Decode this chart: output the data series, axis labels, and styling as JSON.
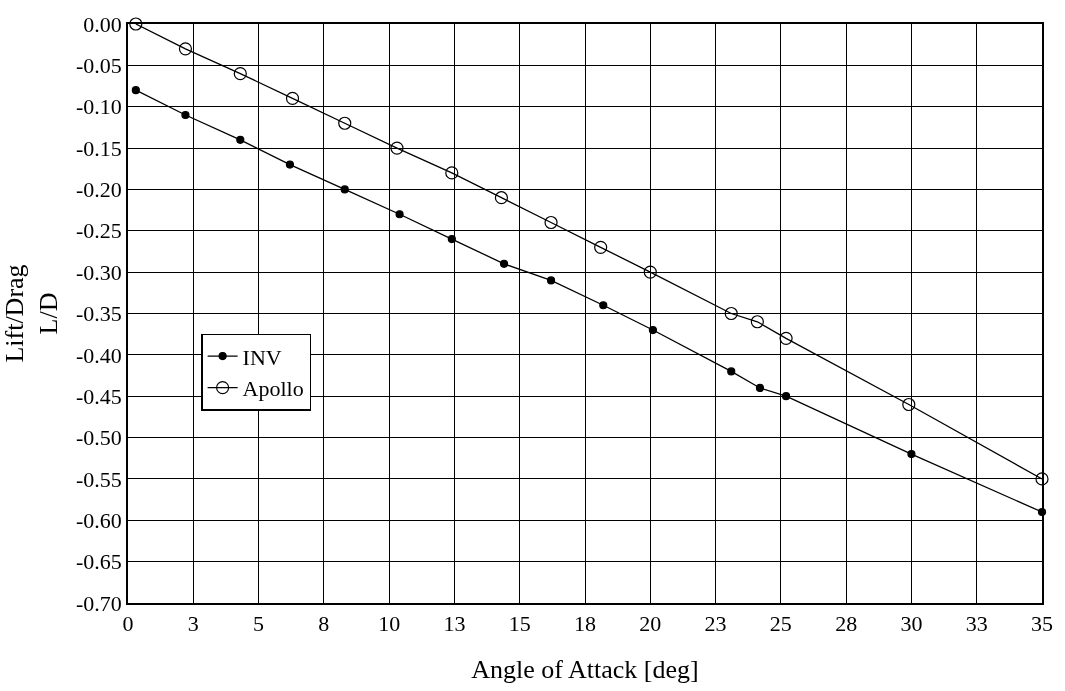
{
  "chart_data": {
    "type": "line",
    "xlabel": "Angle of Attack [deg]",
    "ylabel": "Lift/Drag\nL/D",
    "series": [
      {
        "name": "INV",
        "color": "#000000",
        "marker": "circle",
        "x": [
          0.3,
          2.2,
          4.3,
          6.2,
          8.3,
          10.4,
          12.4,
          14.4,
          16.2,
          18.2,
          20.1,
          23.1,
          24.2,
          25.2,
          30.0,
          35.0
        ],
        "values": [
          -0.08,
          -0.11,
          -0.14,
          -0.17,
          -0.2,
          -0.23,
          -0.26,
          -0.29,
          -0.31,
          -0.34,
          -0.37,
          -0.42,
          -0.44,
          -0.45,
          -0.52,
          -0.59
        ]
      },
      {
        "name": "Apollo",
        "color": "#000000",
        "marker": "circle-open",
        "x": [
          0.3,
          2.2,
          4.3,
          6.3,
          8.3,
          10.3,
          12.4,
          14.3,
          16.2,
          18.1,
          20.0,
          23.1,
          24.1,
          25.2,
          29.9,
          35.0
        ],
        "values": [
          0.0,
          -0.03,
          -0.06,
          -0.09,
          -0.12,
          -0.15,
          -0.18,
          -0.21,
          -0.24,
          -0.27,
          -0.3,
          -0.35,
          -0.36,
          -0.38,
          -0.46,
          -0.55
        ]
      }
    ],
    "xlim": [
      0,
      35
    ],
    "xticks": [
      0,
      {
        "value": 2.5,
        "label": "3"
      },
      5,
      {
        "value": 7.5,
        "label": "8"
      },
      10,
      {
        "value": 12.5,
        "label": "13"
      },
      15,
      {
        "value": 17.5,
        "label": "18"
      },
      20,
      {
        "value": 22.5,
        "label": "23"
      },
      25,
      {
        "value": 27.5,
        "label": "28"
      },
      30,
      {
        "value": 32.5,
        "label": "33"
      },
      35
    ],
    "ylim": [
      -0.7,
      0
    ],
    "yticks": [
      {
        "value": 0,
        "label": "0.00"
      },
      {
        "value": -0.05,
        "label": "-0.05"
      },
      {
        "value": -0.1,
        "label": "-0.10"
      },
      {
        "value": -0.15,
        "label": "-0.15"
      },
      {
        "value": -0.2,
        "label": "-0.20"
      },
      {
        "value": -0.25,
        "label": "-0.25"
      },
      {
        "value": -0.3,
        "label": "-0.30"
      },
      {
        "value": -0.35,
        "label": "-0.35"
      },
      {
        "value": -0.4,
        "label": "-0.40"
      },
      {
        "value": -0.45,
        "label": "-0.45"
      },
      {
        "value": -0.5,
        "label": "-0.50"
      },
      {
        "value": -0.55,
        "label": "-0.55"
      },
      {
        "value": -0.6,
        "label": "-0.60"
      },
      {
        "value": -0.65,
        "label": "-0.65"
      },
      {
        "value": -0.7,
        "label": "-0.70"
      }
    ],
    "grid": true,
    "legend": "left",
    "line_style": "solid"
  }
}
